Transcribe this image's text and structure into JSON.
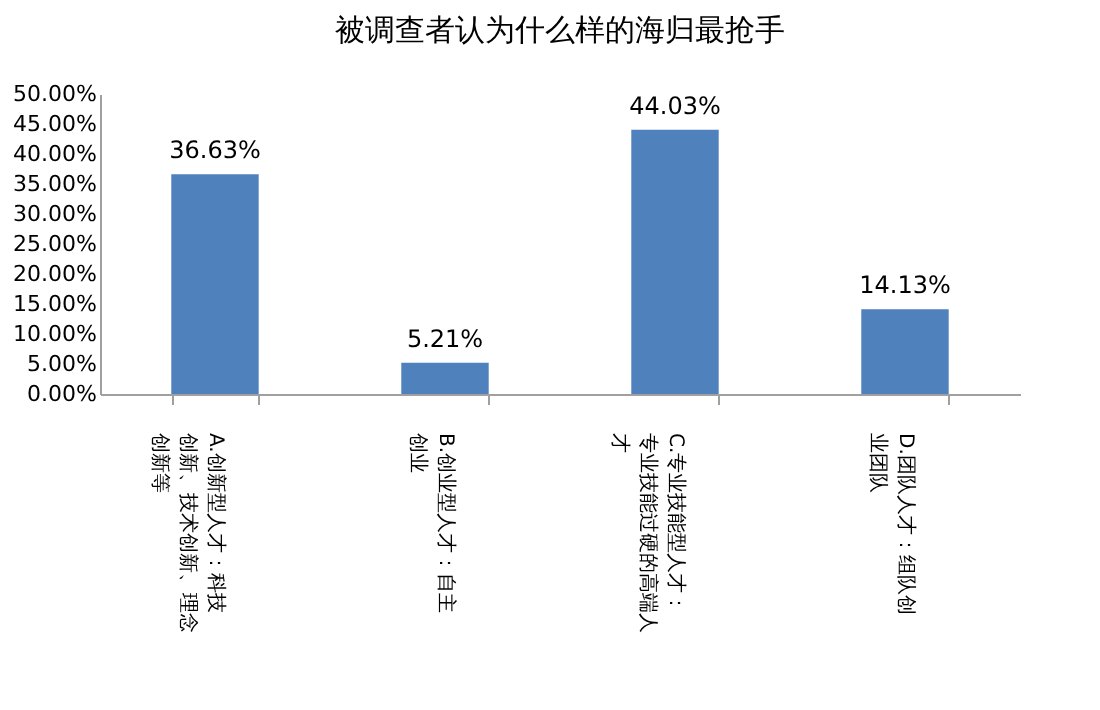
{
  "chart_data": {
    "type": "bar",
    "title": "被调查者认为什么样的海归最抢手",
    "categories": [
      "A.创新型人才：科技创新、技术创新、理念创新等",
      "B.创业型人才：自主创业",
      "C.专业技能型人才：专业技能过硬的高端人才",
      "D.团队人才：组队创业团队"
    ],
    "values": [
      36.63,
      5.21,
      44.03,
      14.13
    ],
    "value_labels": [
      "36.63%",
      "5.21%",
      "44.03%",
      "14.13%"
    ],
    "color": "#4f81bd",
    "ylim": [
      0,
      50
    ],
    "yticks": [
      {
        "value": 0,
        "label": "0.00%"
      },
      {
        "value": 5,
        "label": "5.00%"
      },
      {
        "value": 10,
        "label": "10.00%"
      },
      {
        "value": 15,
        "label": "15.00%"
      },
      {
        "value": 20,
        "label": "20.00%"
      },
      {
        "value": 25,
        "label": "25.00%"
      },
      {
        "value": 30,
        "label": "30.00%"
      },
      {
        "value": 35,
        "label": "35.00%"
      },
      {
        "value": 40,
        "label": "40.00%"
      },
      {
        "value": 45,
        "label": "45.00%"
      },
      {
        "value": 50,
        "label": "50.00%"
      }
    ],
    "grid": false
  }
}
